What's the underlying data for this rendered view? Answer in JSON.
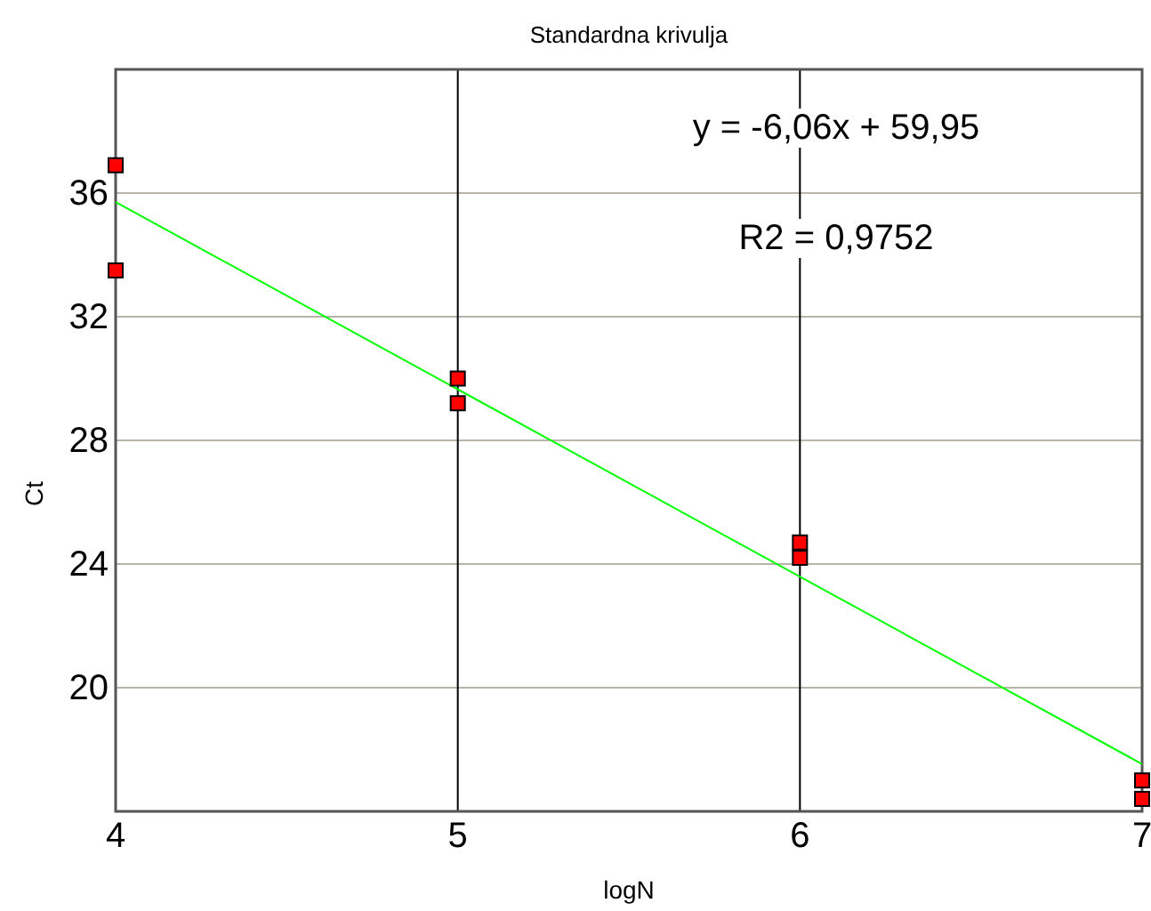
{
  "chart_data": {
    "type": "scatter",
    "title": "Standardna krivulja",
    "xlabel": "logN",
    "ylabel": "Ct",
    "xlim": [
      4,
      7
    ],
    "xticks": [
      4,
      5,
      6,
      7
    ],
    "ylim": [
      16,
      40
    ],
    "yticks": [
      20,
      24,
      28,
      32,
      36
    ],
    "grid": true,
    "marker": "square",
    "series": [
      {
        "color": "#ff0000",
        "x": [
          4,
          4,
          5,
          5,
          6,
          6,
          7,
          7
        ],
        "values": [
          36.9,
          33.5,
          30.0,
          29.2,
          24.7,
          24.2,
          17.0,
          16.4
        ]
      },
      {
        "type": "line",
        "color": "#00ff00",
        "marker": "none",
        "x": [
          4,
          7
        ],
        "values": [
          35.71,
          17.53
        ]
      }
    ],
    "annotations": [
      "y = -6,06x + 59,95",
      "R2 = 0,9752"
    ]
  }
}
